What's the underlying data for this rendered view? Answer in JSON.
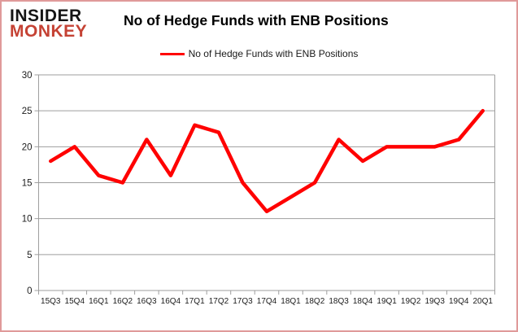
{
  "logo": {
    "line1": "INSIDER",
    "line2": "MONKEY",
    "primary_color": "#151515",
    "accent_color": "#c54234"
  },
  "header": {
    "title": "No of Hedge Funds with ENB Positions"
  },
  "legend": {
    "label": "No of Hedge Funds with ENB Positions",
    "line_color": "#ff0000"
  },
  "chart_data": {
    "type": "line",
    "title": "No of Hedge Funds with ENB Positions",
    "categories": [
      "15Q3",
      "15Q4",
      "16Q1",
      "16Q2",
      "16Q3",
      "16Q4",
      "17Q1",
      "17Q2",
      "17Q3",
      "17Q4",
      "18Q1",
      "18Q2",
      "18Q3",
      "18Q4",
      "19Q1",
      "19Q2",
      "19Q3",
      "19Q4",
      "20Q1"
    ],
    "series": [
      {
        "name": "No of Hedge Funds with ENB Positions",
        "values": [
          18,
          20,
          16,
          15,
          21,
          16,
          23,
          22,
          15,
          11,
          13,
          15,
          21,
          18,
          20,
          20,
          20,
          21,
          25
        ]
      }
    ],
    "xlabel": "",
    "ylabel": "",
    "ylim": [
      0,
      30
    ],
    "ytick_step": 5,
    "yticks": [
      0,
      5,
      10,
      15,
      20,
      25,
      30
    ],
    "grid": "on",
    "legend_position": "top",
    "line_color": "#ff0000",
    "gridline_color": "#9e9e9e"
  }
}
